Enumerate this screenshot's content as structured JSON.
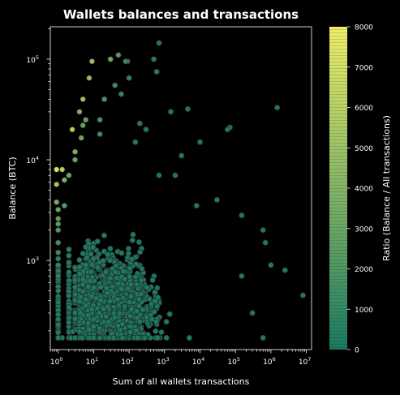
{
  "chart_data": {
    "type": "scatter",
    "title": "Wallets balances and transactions",
    "xlabel": "Sum of all wallets transactions",
    "ylabel": "Balance (BTC)",
    "x_scale": "log",
    "y_scale": "log",
    "xlim": [
      0.6,
      14000000
    ],
    "ylim": [
      130,
      210000
    ],
    "x_ticks": [
      {
        "base": "10",
        "exp": "0",
        "value": 1
      },
      {
        "base": "10",
        "exp": "1",
        "value": 10
      },
      {
        "base": "10",
        "exp": "2",
        "value": 100
      },
      {
        "base": "10",
        "exp": "3",
        "value": 1000
      },
      {
        "base": "10",
        "exp": "4",
        "value": 10000
      },
      {
        "base": "10",
        "exp": "5",
        "value": 100000
      },
      {
        "base": "10",
        "exp": "6",
        "value": 1000000
      },
      {
        "base": "10",
        "exp": "7",
        "value": 10000000
      }
    ],
    "y_ticks": [
      {
        "base": "10",
        "exp": "3",
        "value": 1000
      },
      {
        "base": "10",
        "exp": "4",
        "value": 10000
      },
      {
        "base": "10",
        "exp": "5",
        "value": 100000
      }
    ],
    "grid": false,
    "marker_color_low": "#1a7a62",
    "marker_color_high": "#e8e85a",
    "marker_edge_color": "#2a2a2a",
    "colorbar": {
      "label": "Ratio (Balance / All transactions)",
      "min": 0,
      "max": 8000,
      "ticks": [
        "0",
        "1000",
        "2000",
        "3000",
        "4000",
        "5000",
        "6000",
        "7000",
        "8000"
      ],
      "color_low": "#1a7a62",
      "color_high": "#eeee6a"
    },
    "points": [
      [
        0.9,
        8000,
        7500
      ],
      [
        0.9,
        5700,
        5400
      ],
      [
        1.3,
        8000,
        6100
      ],
      [
        2.5,
        20000,
        6200
      ],
      [
        0.9,
        3800,
        3600
      ],
      [
        3.0,
        12000,
        3900
      ],
      [
        5.0,
        40000,
        5200
      ],
      [
        7.5,
        65000,
        4900
      ],
      [
        4.0,
        30000,
        4100
      ],
      [
        1.0,
        2600,
        2600
      ],
      [
        4.5,
        16500,
        3300
      ],
      [
        6.0,
        25000,
        3000
      ],
      [
        2.0,
        7000,
        3200
      ],
      [
        3.0,
        10000,
        2900
      ],
      [
        5.0,
        22000,
        2800
      ],
      [
        9.0,
        95000,
        5100
      ],
      [
        1.0,
        2000,
        2000
      ],
      [
        1.0,
        1500,
        1500
      ],
      [
        1.0,
        1200,
        1200
      ],
      [
        1.0,
        900,
        900
      ],
      [
        1.0,
        700,
        700
      ],
      [
        1.0,
        500,
        500
      ],
      [
        1.0,
        3200,
        3000
      ],
      [
        1.0,
        2300,
        2300
      ],
      [
        1.5,
        3500,
        2300
      ],
      [
        1.5,
        6300,
        3900
      ],
      [
        15,
        25000,
        1700
      ],
      [
        20,
        40000,
        2000
      ],
      [
        15,
        18000,
        1300
      ],
      [
        30,
        100000,
        3300
      ],
      [
        50,
        110000,
        2200
      ],
      [
        80,
        95000,
        1200
      ],
      [
        40,
        55000,
        1400
      ],
      [
        100,
        65000,
        650
      ],
      [
        60,
        45000,
        750
      ],
      [
        90,
        95000,
        1050
      ],
      [
        200,
        23000,
        120
      ],
      [
        150,
        15000,
        100
      ],
      [
        300,
        20000,
        70
      ],
      [
        700,
        145000,
        210
      ],
      [
        600,
        75000,
        125
      ],
      [
        500,
        100000,
        200
      ],
      [
        4500,
        32000,
        7
      ],
      [
        70000,
        21000,
        1
      ],
      [
        1500000,
        33000,
        1
      ],
      [
        8000000,
        450,
        0
      ],
      [
        2500000,
        800,
        0
      ],
      [
        1000000,
        900,
        1
      ],
      [
        700000,
        1500,
        2
      ],
      [
        600000,
        2000,
        3
      ],
      [
        150000,
        2800,
        2
      ],
      [
        30000,
        4000,
        1
      ],
      [
        150000,
        700,
        0
      ],
      [
        300000,
        300,
        0
      ],
      [
        600000,
        170,
        0
      ],
      [
        5000,
        170,
        0
      ],
      [
        3000,
        11000,
        4
      ],
      [
        10000,
        15000,
        2
      ],
      [
        60000,
        20000,
        1
      ],
      [
        1500,
        30000,
        20
      ],
      [
        700,
        7000,
        10
      ],
      [
        2000,
        7000,
        4
      ],
      [
        8000,
        3500,
        0
      ]
    ]
  }
}
